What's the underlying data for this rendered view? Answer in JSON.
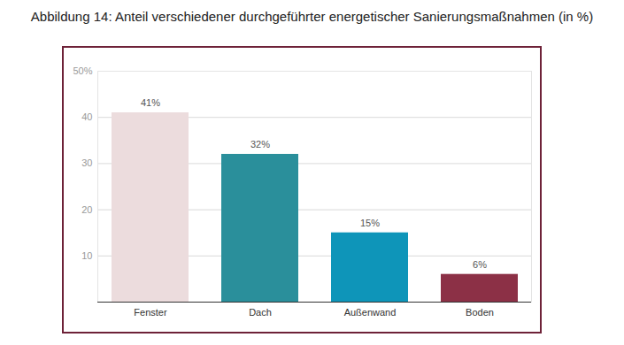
{
  "chart_data": {
    "type": "bar",
    "title": "Abbildung 14: Anteil verschiedener durchgeführter energetischer Sanierungsmaßnahmen (in %)",
    "categories": [
      "Fenster",
      "Dach",
      "Außenwand",
      "Boden"
    ],
    "values": [
      41,
      32,
      15,
      6
    ],
    "value_labels": [
      "41%",
      "32%",
      "15%",
      "6%"
    ],
    "colors": [
      "#ecdcdd",
      "#2a8f9b",
      "#0e95b9",
      "#8c3046"
    ],
    "ylim": [
      0,
      50
    ],
    "yticks": [
      10,
      20,
      30,
      40,
      {
        "value": 50,
        "label": "50%"
      }
    ],
    "grid": true,
    "data_labels": true
  }
}
